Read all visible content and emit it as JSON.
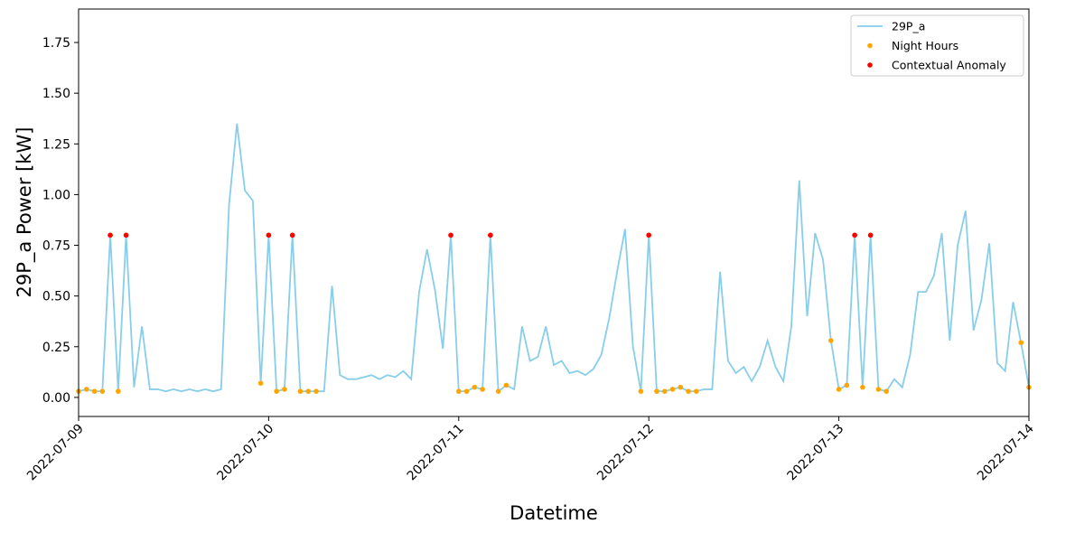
{
  "chart_data": {
    "type": "line",
    "xlabel": "Datetime",
    "ylabel": "29P_a Power [kW]",
    "xlim": [
      "2022-07-09",
      "2022-07-14"
    ],
    "xticks": [
      "2022-07-09",
      "2022-07-10",
      "2022-07-11",
      "2022-07-12",
      "2022-07-13",
      "2022-07-14"
    ],
    "ylim": [
      -0.094,
      1.915
    ],
    "yticks": [
      {
        "value": 0,
        "label": "0.00"
      },
      {
        "value": 0.25,
        "label": "0.25"
      },
      {
        "value": 0.5,
        "label": "0.50"
      },
      {
        "value": 0.75,
        "label": "0.75"
      },
      {
        "value": 1,
        "label": "1.00"
      },
      {
        "value": 1.25,
        "label": "1.25"
      },
      {
        "value": 1.5,
        "label": "1.50"
      },
      {
        "value": 1.75,
        "label": "1.75"
      }
    ],
    "legend": "upper right",
    "x": [
      "2022-07-09 00:00",
      "2022-07-09 01:00",
      "2022-07-09 02:00",
      "2022-07-09 03:00",
      "2022-07-09 04:00",
      "2022-07-09 05:00",
      "2022-07-09 06:00",
      "2022-07-09 07:00",
      "2022-07-09 08:00",
      "2022-07-09 09:00",
      "2022-07-09 10:00",
      "2022-07-09 11:00",
      "2022-07-09 12:00",
      "2022-07-09 13:00",
      "2022-07-09 14:00",
      "2022-07-09 15:00",
      "2022-07-09 16:00",
      "2022-07-09 17:00",
      "2022-07-09 18:00",
      "2022-07-09 19:00",
      "2022-07-09 20:00",
      "2022-07-09 21:00",
      "2022-07-09 22:00",
      "2022-07-09 23:00",
      "2022-07-10 00:00",
      "2022-07-10 01:00",
      "2022-07-10 02:00",
      "2022-07-10 03:00",
      "2022-07-10 04:00",
      "2022-07-10 05:00",
      "2022-07-10 06:00",
      "2022-07-10 07:00",
      "2022-07-10 08:00",
      "2022-07-10 09:00",
      "2022-07-10 10:00",
      "2022-07-10 11:00",
      "2022-07-10 12:00",
      "2022-07-10 13:00",
      "2022-07-10 14:00",
      "2022-07-10 15:00",
      "2022-07-10 16:00",
      "2022-07-10 17:00",
      "2022-07-10 18:00",
      "2022-07-10 19:00",
      "2022-07-10 20:00",
      "2022-07-10 21:00",
      "2022-07-10 22:00",
      "2022-07-10 23:00",
      "2022-07-11 00:00",
      "2022-07-11 01:00",
      "2022-07-11 02:00",
      "2022-07-11 03:00",
      "2022-07-11 04:00",
      "2022-07-11 05:00",
      "2022-07-11 06:00",
      "2022-07-11 07:00",
      "2022-07-11 08:00",
      "2022-07-11 09:00",
      "2022-07-11 10:00",
      "2022-07-11 11:00",
      "2022-07-11 12:00",
      "2022-07-11 13:00",
      "2022-07-11 14:00",
      "2022-07-11 15:00",
      "2022-07-11 16:00",
      "2022-07-11 17:00",
      "2022-07-11 18:00",
      "2022-07-11 19:00",
      "2022-07-11 20:00",
      "2022-07-11 21:00",
      "2022-07-11 22:00",
      "2022-07-11 23:00",
      "2022-07-12 00:00",
      "2022-07-12 01:00",
      "2022-07-12 02:00",
      "2022-07-12 03:00",
      "2022-07-12 04:00",
      "2022-07-12 05:00",
      "2022-07-12 06:00",
      "2022-07-12 07:00",
      "2022-07-12 08:00",
      "2022-07-12 09:00",
      "2022-07-12 10:00",
      "2022-07-12 11:00",
      "2022-07-12 12:00",
      "2022-07-12 13:00",
      "2022-07-12 14:00",
      "2022-07-12 15:00",
      "2022-07-12 16:00",
      "2022-07-12 17:00",
      "2022-07-12 18:00",
      "2022-07-12 19:00",
      "2022-07-12 20:00",
      "2022-07-12 21:00",
      "2022-07-12 22:00",
      "2022-07-12 23:00",
      "2022-07-13 00:00",
      "2022-07-13 01:00",
      "2022-07-13 02:00",
      "2022-07-13 03:00",
      "2022-07-13 04:00",
      "2022-07-13 05:00",
      "2022-07-13 06:00",
      "2022-07-13 07:00",
      "2022-07-13 08:00",
      "2022-07-13 09:00",
      "2022-07-13 10:00",
      "2022-07-13 11:00",
      "2022-07-13 12:00",
      "2022-07-13 13:00",
      "2022-07-13 14:00",
      "2022-07-13 15:00",
      "2022-07-13 16:00",
      "2022-07-13 17:00",
      "2022-07-13 18:00",
      "2022-07-13 19:00",
      "2022-07-13 20:00",
      "2022-07-13 21:00",
      "2022-07-13 22:00",
      "2022-07-13 23:00",
      "2022-07-14 00:00"
    ],
    "series": [
      {
        "name": "29P_a",
        "color": "#87ceeb",
        "values": [
          0.03,
          0.04,
          0.03,
          0.03,
          0.8,
          0.03,
          0.8,
          0.05,
          0.35,
          0.04,
          0.04,
          0.03,
          0.04,
          0.03,
          0.04,
          0.03,
          0.04,
          0.03,
          0.04,
          0.95,
          1.35,
          1.02,
          0.97,
          0.07,
          0.8,
          0.03,
          0.04,
          0.8,
          0.03,
          0.03,
          0.03,
          0.03,
          0.55,
          0.11,
          0.09,
          0.09,
          0.1,
          0.11,
          0.09,
          0.11,
          0.1,
          0.13,
          0.09,
          0.52,
          0.73,
          0.53,
          0.24,
          0.8,
          0.03,
          0.03,
          0.05,
          0.04,
          0.8,
          0.03,
          0.06,
          0.04,
          0.35,
          0.18,
          0.2,
          0.35,
          0.16,
          0.18,
          0.12,
          0.13,
          0.11,
          0.14,
          0.21,
          0.39,
          0.62,
          0.83,
          0.25,
          0.03,
          0.8,
          0.03,
          0.03,
          0.04,
          0.05,
          0.03,
          0.03,
          0.04,
          0.04,
          0.62,
          0.18,
          0.12,
          0.15,
          0.08,
          0.15,
          0.28,
          0.15,
          0.08,
          0.35,
          1.07,
          0.4,
          0.81,
          0.68,
          0.28,
          0.04,
          0.06,
          0.8,
          0.05,
          0.8,
          0.04,
          0.03,
          0.09,
          0.05,
          0.21,
          0.52,
          0.52,
          0.6,
          0.81,
          0.28,
          0.75,
          0.92,
          0.33,
          0.48,
          0.76,
          0.17,
          0.13,
          0.47,
          0.27,
          0.05
        ]
      },
      {
        "name": "Night Hours",
        "type": "scatter",
        "color": "#ffa500",
        "x": [
          "2022-07-09 00:00",
          "2022-07-09 01:00",
          "2022-07-09 02:00",
          "2022-07-09 03:00",
          "2022-07-09 04:00",
          "2022-07-09 05:00",
          "2022-07-09 06:00",
          "2022-07-09 23:00",
          "2022-07-10 00:00",
          "2022-07-10 01:00",
          "2022-07-10 02:00",
          "2022-07-10 03:00",
          "2022-07-10 04:00",
          "2022-07-10 05:00",
          "2022-07-10 06:00",
          "2022-07-10 23:00",
          "2022-07-11 00:00",
          "2022-07-11 01:00",
          "2022-07-11 02:00",
          "2022-07-11 03:00",
          "2022-07-11 04:00",
          "2022-07-11 05:00",
          "2022-07-11 06:00",
          "2022-07-11 23:00",
          "2022-07-12 00:00",
          "2022-07-12 01:00",
          "2022-07-12 02:00",
          "2022-07-12 03:00",
          "2022-07-12 04:00",
          "2022-07-12 05:00",
          "2022-07-12 06:00",
          "2022-07-12 23:00",
          "2022-07-13 00:00",
          "2022-07-13 01:00",
          "2022-07-13 02:00",
          "2022-07-13 03:00",
          "2022-07-13 04:00",
          "2022-07-13 05:00",
          "2022-07-13 06:00",
          "2022-07-13 23:00",
          "2022-07-14 00:00"
        ],
        "values": [
          0.03,
          0.04,
          0.03,
          0.03,
          0.8,
          0.03,
          0.8,
          0.07,
          0.8,
          0.03,
          0.04,
          0.8,
          0.03,
          0.03,
          0.03,
          0.8,
          0.03,
          0.03,
          0.05,
          0.04,
          0.8,
          0.03,
          0.06,
          0.03,
          0.8,
          0.03,
          0.03,
          0.04,
          0.05,
          0.03,
          0.03,
          0.28,
          0.04,
          0.06,
          0.8,
          0.05,
          0.8,
          0.04,
          0.03,
          0.27,
          0.05
        ]
      },
      {
        "name": "Contextual Anomaly",
        "type": "scatter",
        "color": "#ff0000",
        "x": [
          "2022-07-09 04:00",
          "2022-07-09 06:00",
          "2022-07-10 00:00",
          "2022-07-10 03:00",
          "2022-07-10 23:00",
          "2022-07-11 04:00",
          "2022-07-12 00:00",
          "2022-07-13 02:00",
          "2022-07-13 04:00"
        ],
        "values": [
          0.8,
          0.8,
          0.8,
          0.8,
          0.8,
          0.8,
          0.8,
          0.8,
          0.8
        ]
      }
    ]
  }
}
